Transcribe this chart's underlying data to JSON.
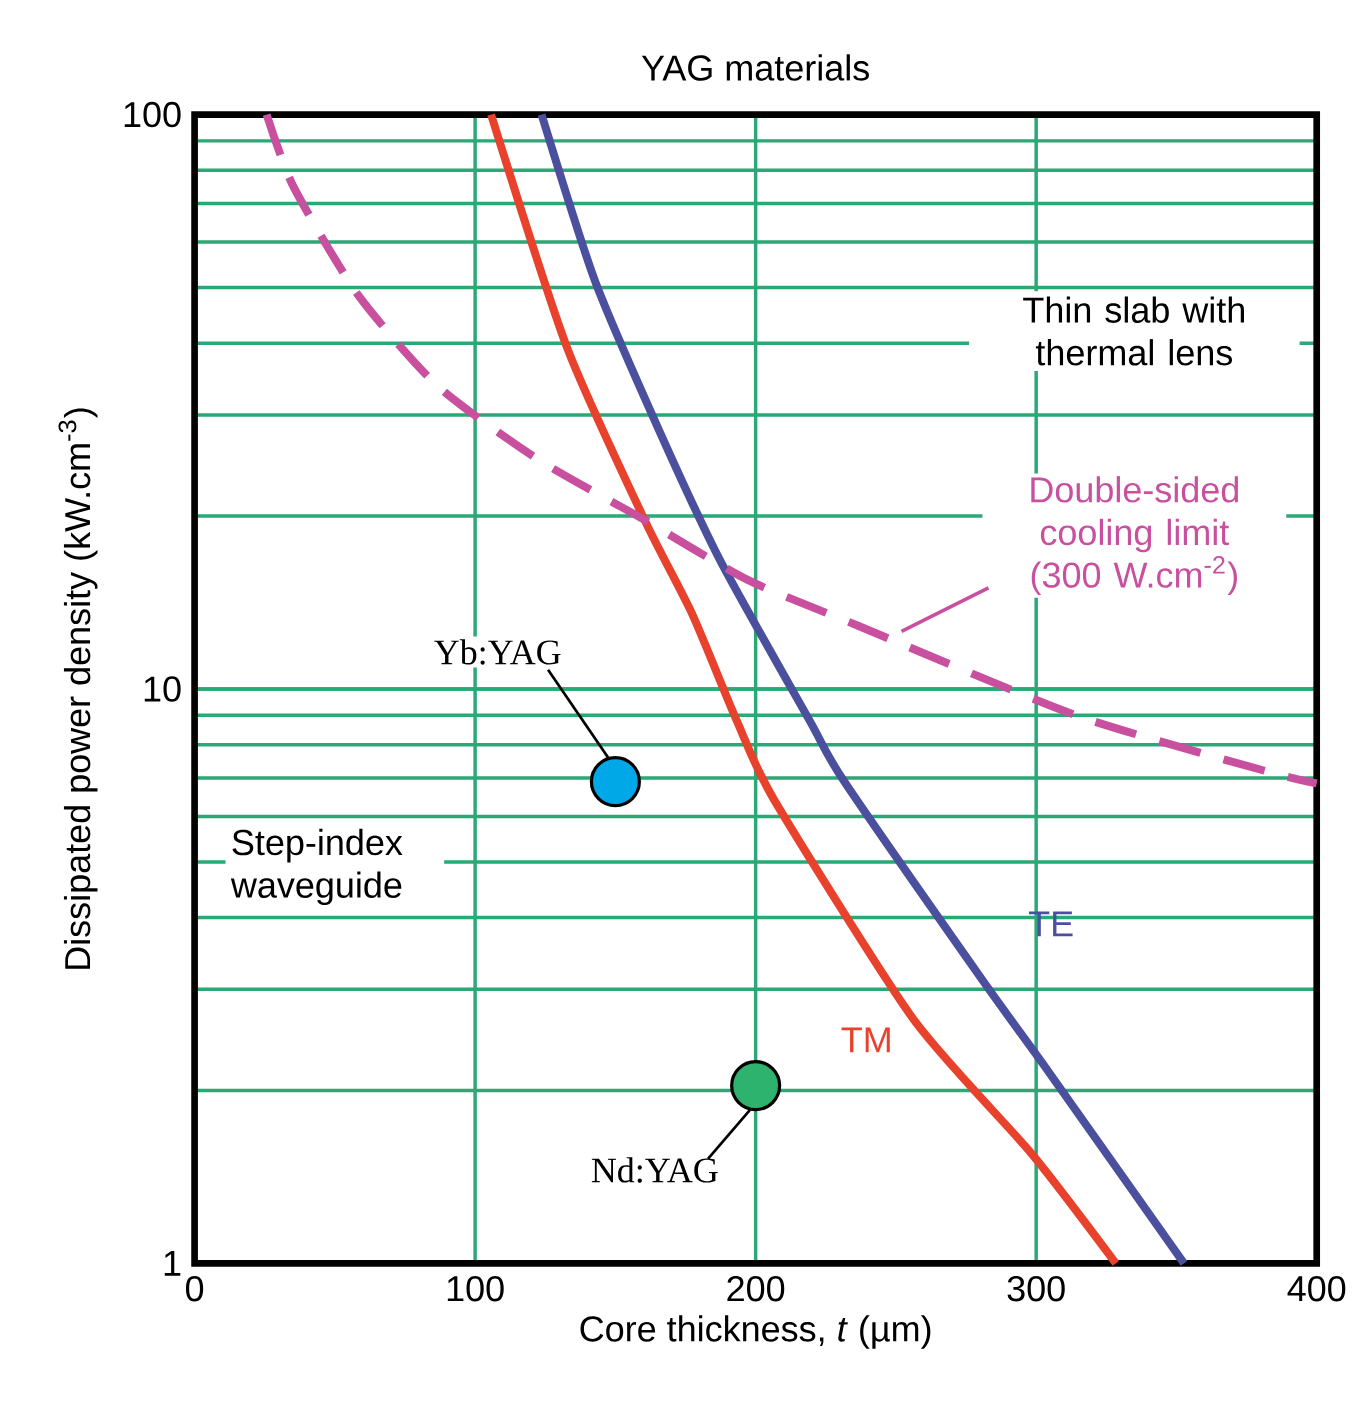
{
  "chart_data": {
    "type": "line",
    "title": "YAG materials",
    "xlabel": "Core thickness, *t* (µm)",
    "ylabel": "Dissipated power density (kW.cm$^{-3}$)",
    "xlim": [
      0,
      400
    ],
    "ylim": [
      1,
      100
    ],
    "xticks": [
      0,
      100,
      200,
      300,
      400
    ],
    "yticks": [
      1,
      10,
      100
    ],
    "log": "y",
    "grid": true,
    "marker": "none",
    "series": [
      {
        "name": "TM",
        "color": "#e8412c",
        "x": [
          105.7,
          132.6,
          160.4,
          177.4,
          193.3,
          206.7,
          256.3,
          298.5,
          328.4
        ],
        "values": [
          100,
          39.5,
          19.7,
          13.5,
          8.8,
          6.4,
          2.66,
          1.55,
          1
        ]
      },
      {
        "name": "TE",
        "color": "#4a4f9e",
        "x": [
          123.7,
          142.7,
          164.9,
          187.2,
          219.3,
          231.6,
          280.7,
          304.6,
          352.7
        ],
        "values": [
          100,
          51.4,
          28.7,
          16.8,
          8.8,
          6.9,
          3.12,
          2.15,
          1
        ]
      },
      {
        "name": "Double-sided cooling limit (300 W.cm$^{-2}$)",
        "color": "#c8509f",
        "line_style": "dashed",
        "x": [
          25.7,
          35.2,
          58.2,
          86.9,
          123,
          160.4,
          197,
          236.3,
          314.2,
          381.7,
          400
        ],
        "values": [
          100,
          75,
          48.6,
          33.6,
          25,
          19.7,
          15.5,
          12.9,
          9,
          7.2,
          6.85
        ]
      },
      {
        "name": "Yb:YAG",
        "type": "scatter",
        "color": "#00a8e8",
        "x": [
          150
        ],
        "values": [
          6.9
        ]
      },
      {
        "name": "Nd:YAG",
        "type": "scatter",
        "color": "#2db36e",
        "x": [
          200
        ],
        "values": [
          2.04
        ]
      }
    ],
    "annotations": [
      "Thin slab with thermal lens",
      "Step-index waveguide"
    ]
  }
}
